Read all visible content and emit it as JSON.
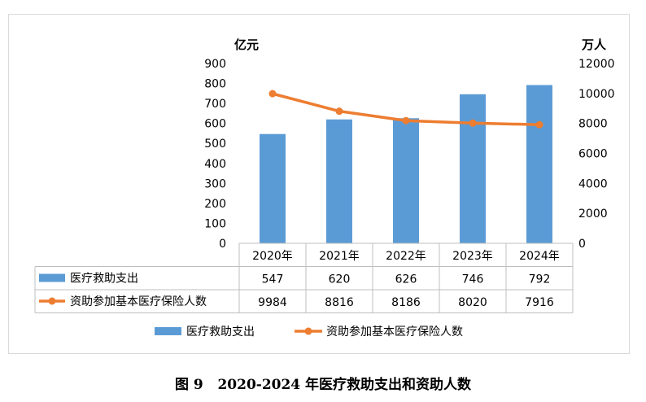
{
  "chart_data": {
    "type": "bar+line",
    "categories": [
      "2020年",
      "2021年",
      "2022年",
      "2023年",
      "2024年"
    ],
    "series": [
      {
        "name": "医疗救助支出",
        "type": "bar",
        "axis": "left",
        "values": [
          547,
          620,
          626,
          746,
          792
        ]
      },
      {
        "name": "资助参加基本医疗保险人数",
        "type": "line",
        "axis": "right",
        "values": [
          9984,
          8816,
          8186,
          8020,
          7916
        ]
      }
    ],
    "y_left": {
      "unit": "亿元",
      "ylim": [
        0,
        900
      ],
      "ticks": [
        0,
        100,
        200,
        300,
        400,
        500,
        600,
        700,
        800,
        900
      ]
    },
    "y_right": {
      "unit": "万人",
      "ylim": [
        0,
        12000
      ],
      "ticks": [
        0,
        2000,
        4000,
        6000,
        8000,
        10000,
        12000
      ]
    },
    "data_table": true,
    "legend": "bottom",
    "grid": false,
    "colors": {
      "bar": "#5b9bd5",
      "line": "#ed7d31"
    }
  },
  "caption": {
    "figure_no": "图 9",
    "title": "2020-2024 年医疗救助支出和资助人数"
  }
}
